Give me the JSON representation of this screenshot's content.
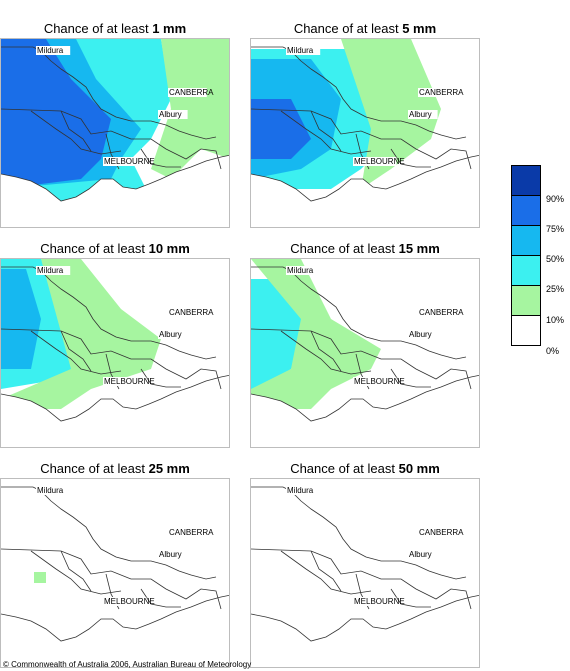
{
  "panels": [
    {
      "title_prefix": "Chance of at least ",
      "amount": "1 mm"
    },
    {
      "title_prefix": "Chance of at least ",
      "amount": "5 mm"
    },
    {
      "title_prefix": "Chance of at least ",
      "amount": "10 mm"
    },
    {
      "title_prefix": "Chance of at least ",
      "amount": "15 mm"
    },
    {
      "title_prefix": "Chance of at least ",
      "amount": "25 mm"
    },
    {
      "title_prefix": "Chance of at least ",
      "amount": "50 mm"
    }
  ],
  "map_labels": {
    "mildura": "Mildura",
    "canberra": "CANBERRA",
    "albury": "Albury",
    "melbourne": "MELBOURNE"
  },
  "legend": {
    "classes": [
      {
        "color": "#0a3aa8",
        "upper": ""
      },
      {
        "color": "#1a6ee8",
        "upper": "90%"
      },
      {
        "color": "#16b8f0",
        "upper": "75%"
      },
      {
        "color": "#3cf0f0",
        "upper": "50%"
      },
      {
        "color": "#a6f5a0",
        "upper": "25%"
      },
      {
        "color": "#ffffff",
        "upper": "10%"
      }
    ],
    "bottom_label": "0%"
  },
  "copyright": "© Commonwealth of Australia 2006, Australian Bureau of Meteorology"
}
